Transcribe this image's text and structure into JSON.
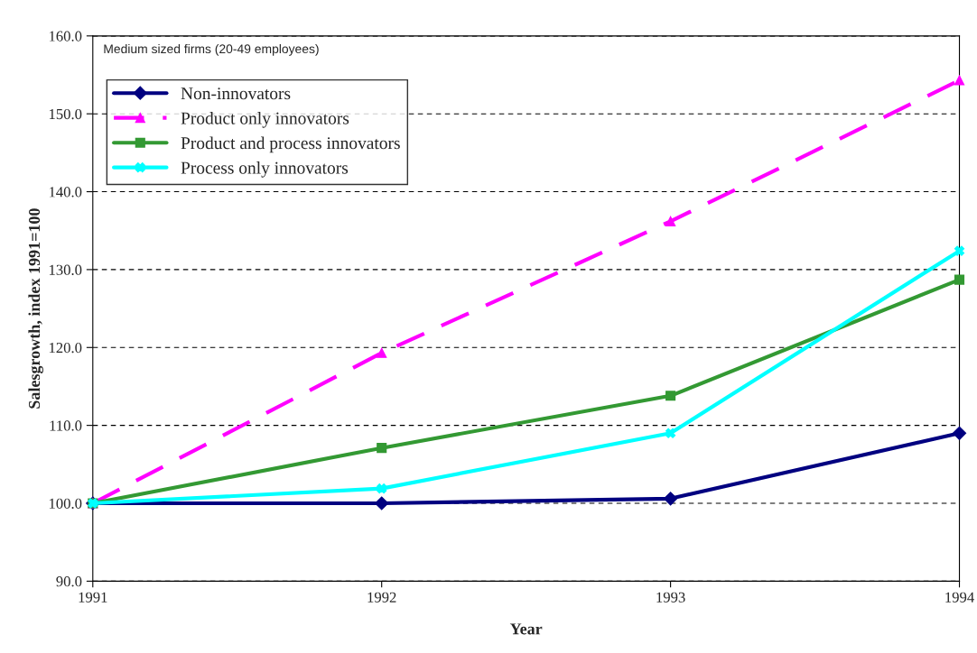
{
  "chart_data": {
    "type": "line",
    "xlabel": "Year",
    "ylabel": "Salesgrowth, index 1991=100",
    "categories": [
      "1991",
      "1992",
      "1993",
      "1994"
    ],
    "series": [
      {
        "name": "Non-innovators",
        "color": "#000080",
        "marker": "diamond",
        "line_style": "solid",
        "values": [
          100,
          100,
          100.6,
          109.0
        ]
      },
      {
        "name": "Product only innovators",
        "color": "#ff00ff",
        "marker": "triangle",
        "line_style": "dashed",
        "values": [
          100,
          119.3,
          136.2,
          154.3
        ]
      },
      {
        "name": "Product and process innovators",
        "color": "#339933",
        "marker": "square",
        "line_style": "solid",
        "values": [
          100,
          107.1,
          113.8,
          128.7
        ]
      },
      {
        "name": "Process only innovators",
        "color": "#00ffff",
        "marker": "cross",
        "line_style": "solid",
        "values": [
          100,
          101.9,
          109.0,
          132.4
        ]
      }
    ],
    "ylim": [
      90,
      160
    ],
    "yticks": [
      {
        "value": 90,
        "label": "90.0"
      },
      {
        "value": 100,
        "label": "100.0"
      },
      {
        "value": 110,
        "label": "110.0"
      },
      {
        "value": 120,
        "label": "120.0"
      },
      {
        "value": 130,
        "label": "130.0"
      },
      {
        "value": 140,
        "label": "140.0"
      },
      {
        "value": 150,
        "label": "150.0"
      },
      {
        "value": 160,
        "label": "160.0"
      }
    ],
    "annotations": [
      "Medium sized firms (20-49 employees)"
    ],
    "grid": "y",
    "legend": "top left"
  }
}
